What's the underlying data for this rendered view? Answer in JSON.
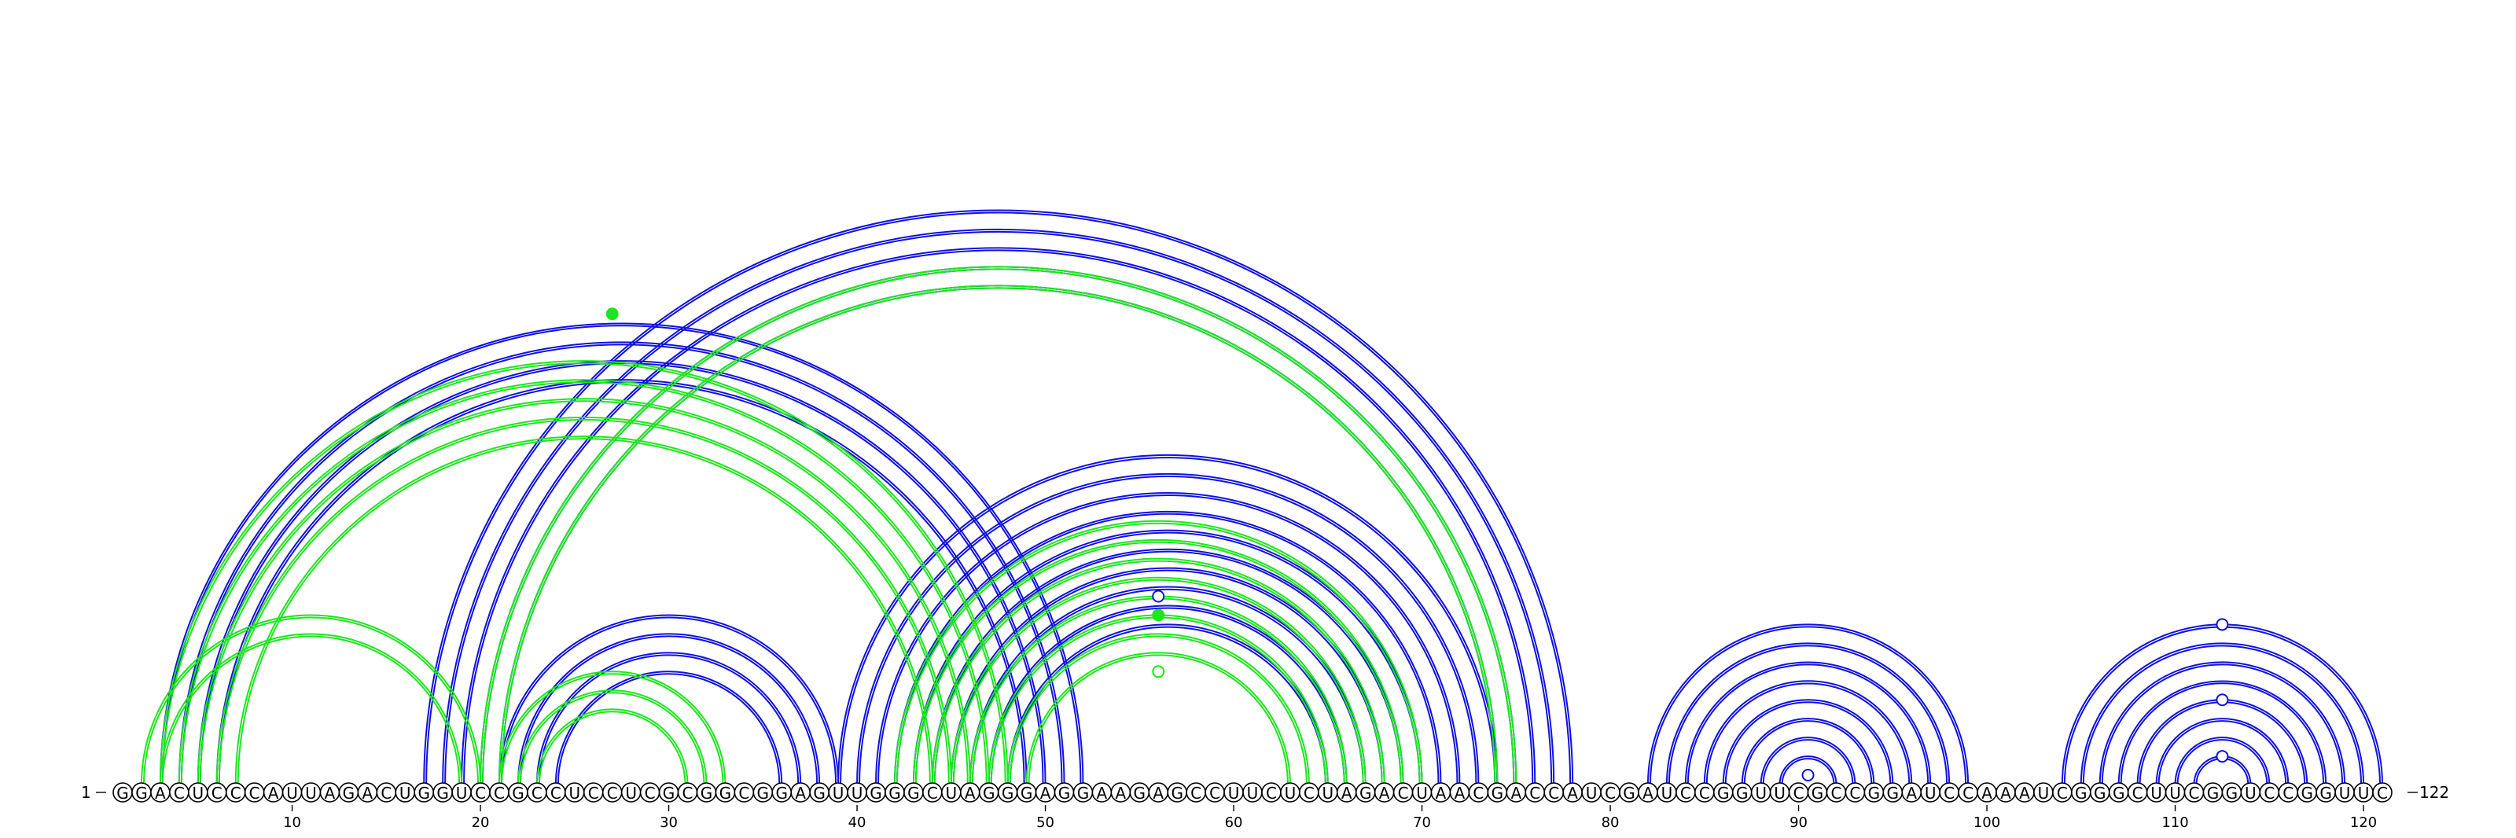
{
  "sequence": "GGACUCCCAUUAGACUGGUCCGCCUCCUCGCGGCGGAGUUGGGCUAGGGAGGAAGAGCCUUCUCUAGACUAACGACCAUCGAUCCGGUUCGCCGGAUCCAAAUCGGGCUUCGGUCCGGUUC",
  "length": 122,
  "start_label": "1",
  "end_label": "122",
  "tick_positions": [
    10,
    20,
    30,
    40,
    50,
    60,
    70,
    80,
    90,
    100,
    110,
    120
  ],
  "colors": {
    "structure_a": "#1010e0",
    "structure_b": "#1ee61e",
    "nucleotide": "#000000"
  },
  "blue_helices": [
    {
      "i": 3,
      "j": 52,
      "n": 4,
      "offset": 0
    },
    {
      "i": 17,
      "j": 78,
      "n": 5,
      "offset": 0
    },
    {
      "i": 21,
      "j": 39,
      "n": 4,
      "offset": 0
    },
    {
      "i": 39,
      "j": 74,
      "n": 10,
      "offset": 0
    },
    {
      "i": 82,
      "j": 99,
      "n": 8,
      "offset": 0
    },
    {
      "i": 104,
      "j": 121,
      "n": 8,
      "offset": 0
    }
  ],
  "green_helices": [
    {
      "i": 2,
      "j": 20,
      "n": 2,
      "offset": 0
    },
    {
      "i": 3,
      "j": 48,
      "n": 5,
      "offset": 0
    },
    {
      "i": 20,
      "j": 75,
      "n": 2,
      "offset": 0
    },
    {
      "i": 21,
      "j": 33,
      "n": 3,
      "offset": 0
    },
    {
      "i": 42,
      "j": 70,
      "n": 8,
      "offset": 0
    }
  ],
  "markers": [
    {
      "i": 2,
      "j": 52,
      "color": "structure_b",
      "filled": true
    },
    {
      "i": 46,
      "j": 66,
      "color": "structure_a",
      "filled": false
    },
    {
      "i": 47,
      "j": 65,
      "color": "structure_b",
      "filled": true
    },
    {
      "i": 50,
      "j": 62,
      "color": "structure_b",
      "filled": false
    },
    {
      "i": 90,
      "j": 91,
      "color": "structure_a",
      "filled": false
    },
    {
      "i": 104,
      "j": 121,
      "color": "structure_a",
      "filled": false
    },
    {
      "i": 108,
      "j": 117,
      "color": "structure_a",
      "filled": false
    },
    {
      "i": 111,
      "j": 114,
      "color": "structure_a",
      "filled": false
    }
  ]
}
